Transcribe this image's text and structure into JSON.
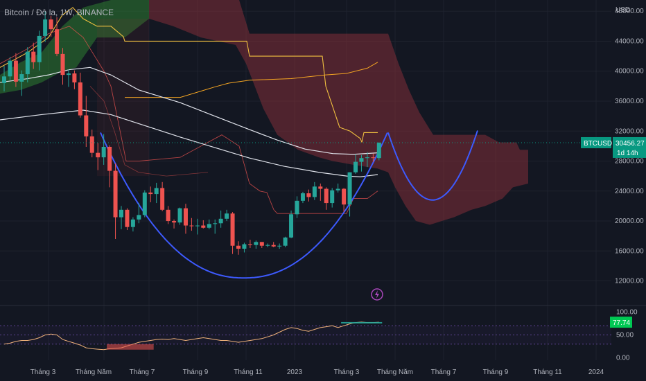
{
  "header": {
    "symbol_title": "Bitcoin / Đô la, 1W, BINANCE",
    "currency": "USD"
  },
  "price_tag": {
    "symbol": "BTCUSD",
    "price": "30456.27",
    "countdown": "1d 14h"
  },
  "oscillator_tag": {
    "value": "77.74"
  },
  "colors": {
    "background": "#131722",
    "up": "#26a69a",
    "down": "#ef5350",
    "cloud_red": "#8b2f3a",
    "cloud_green": "#2e7d32",
    "projection": "#3d5afe",
    "tag": "#089981",
    "ema_white": "#e0e3eb",
    "kijun_yellow": "#f0c040",
    "orange": "#f5a623",
    "tenkan_red": "#ef5350"
  },
  "chart_data": {
    "type": "candlestick",
    "price_axis": {
      "ylim": [
        9000,
        49500
      ],
      "ticks": [
        12000,
        16000,
        20000,
        24000,
        28000,
        32000,
        36000,
        40000,
        44000,
        48000
      ],
      "tick_labels": [
        "12000.00",
        "16000.00",
        "20000.00",
        "24000.00",
        "28000.00",
        "32000.00",
        "36000.00",
        "40000.00",
        "44000.00",
        "48000.00"
      ]
    },
    "oscillator_axis": {
      "ylim": [
        -5,
        105
      ],
      "ticks": [
        0,
        50,
        100
      ],
      "tick_labels": [
        "0.00",
        "50.00",
        "100.00"
      ]
    },
    "time_axis": {
      "labels": [
        "Tháng 3",
        "Tháng Năm",
        "Tháng 7",
        "Tháng 9",
        "Tháng 11",
        "2023",
        "Tháng 3",
        "Tháng Năm",
        "Tháng 7",
        "Tháng 9",
        "Tháng 11",
        "2024"
      ]
    },
    "candles": [
      [
        38400,
        40700,
        37300,
        39300
      ],
      [
        39300,
        41900,
        38800,
        41400
      ],
      [
        41400,
        42400,
        37900,
        38600
      ],
      [
        38600,
        40100,
        36700,
        39600
      ],
      [
        39600,
        43200,
        38500,
        42600
      ],
      [
        42600,
        43800,
        40300,
        41200
      ],
      [
        41200,
        45400,
        40100,
        44700
      ],
      [
        44700,
        48000,
        43900,
        46900
      ],
      [
        46900,
        47400,
        44600,
        45600
      ],
      [
        45600,
        47200,
        42000,
        42300
      ],
      [
        42300,
        43100,
        38200,
        39500
      ],
      [
        39500,
        40200,
        37900,
        39700
      ],
      [
        39700,
        40100,
        37600,
        38500
      ],
      [
        38500,
        39800,
        33800,
        34100
      ],
      [
        34100,
        36700,
        29900,
        31300
      ],
      [
        31300,
        32200,
        28500,
        29100
      ],
      [
        29100,
        30400,
        26800,
        28500
      ],
      [
        28500,
        31600,
        27500,
        29900
      ],
      [
        29900,
        30100,
        24500,
        26700
      ],
      [
        26700,
        27700,
        17600,
        20500
      ],
      [
        20500,
        22000,
        18900,
        21500
      ],
      [
        21500,
        21700,
        18800,
        19200
      ],
      [
        19200,
        20500,
        18600,
        20200
      ],
      [
        20200,
        22400,
        19700,
        20800
      ],
      [
        20800,
        24100,
        20500,
        23800
      ],
      [
        23800,
        24600,
        22500,
        23600
      ],
      [
        23600,
        25100,
        22400,
        24400
      ],
      [
        24400,
        25200,
        21300,
        21500
      ],
      [
        21500,
        22000,
        19600,
        20000
      ],
      [
        20000,
        20200,
        19000,
        19800
      ],
      [
        19800,
        21800,
        19500,
        21700
      ],
      [
        21700,
        22300,
        18300,
        19400
      ],
      [
        19400,
        20400,
        18700,
        19300
      ],
      [
        19300,
        20300,
        18200,
        19400
      ],
      [
        19400,
        20100,
        19000,
        19100
      ],
      [
        19100,
        20200,
        18900,
        19600
      ],
      [
        19600,
        20200,
        18300,
        19700
      ],
      [
        19700,
        21400,
        19100,
        20300
      ],
      [
        20300,
        21500,
        20000,
        21000
      ],
      [
        21000,
        21200,
        15600,
        16700
      ],
      [
        16700,
        17300,
        15500,
        16300
      ],
      [
        16300,
        17100,
        15800,
        16900
      ],
      [
        16900,
        17500,
        16400,
        16800
      ],
      [
        16800,
        17400,
        16300,
        17200
      ],
      [
        17200,
        17200,
        16400,
        16700
      ],
      [
        16700,
        17000,
        16500,
        16800
      ],
      [
        16800,
        17200,
        16500,
        16600
      ],
      [
        16600,
        17000,
        16300,
        16700
      ],
      [
        16700,
        17900,
        16500,
        17800
      ],
      [
        17800,
        21400,
        17700,
        20900
      ],
      [
        20900,
        23300,
        20400,
        22700
      ],
      [
        22700,
        23900,
        22400,
        23700
      ],
      [
        23700,
        24200,
        22600,
        23200
      ],
      [
        23200,
        25200,
        22800,
        24600
      ],
      [
        24600,
        25000,
        22700,
        24300
      ],
      [
        24300,
        24500,
        21500,
        22400
      ],
      [
        22400,
        24400,
        21800,
        24100
      ],
      [
        24100,
        25000,
        23800,
        24300
      ],
      [
        24300,
        24400,
        21200,
        22200
      ],
      [
        22200,
        26500,
        20600,
        26500
      ],
      [
        26500,
        28900,
        26300,
        27900
      ],
      [
        27900,
        28800,
        26600,
        28400
      ],
      [
        28400,
        29200,
        27200,
        28500
      ],
      [
        28500,
        29000,
        27900,
        28400
      ],
      [
        28400,
        30500,
        28100,
        30456
      ]
    ],
    "cloud_future_upper": [
      30000,
      32000,
      31800,
      31700,
      31700,
      31000,
      31000,
      31000,
      31000,
      31000,
      31000,
      31000,
      31000,
      31000,
      31000,
      31000,
      31000,
      31000,
      31000,
      31000,
      31000,
      31000,
      31000,
      30000,
      30000,
      28500,
      28500
    ],
    "cloud_future_lower": [
      27500,
      27000,
      26000,
      24500,
      23500,
      23000,
      22000,
      21500,
      21000,
      20500,
      19800,
      19500,
      19500,
      19500,
      19500,
      19500,
      20500,
      20500,
      21500,
      22500,
      22500,
      22500,
      22500,
      23500,
      24500,
      24500,
      24500
    ],
    "oscillator_last": 77.74
  }
}
